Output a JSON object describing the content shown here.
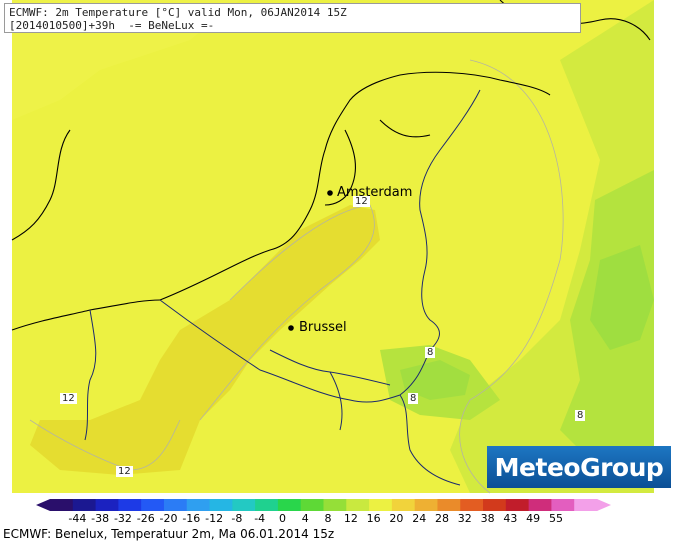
{
  "header": {
    "line1": "ECMWF: 2m Temperature [°C] valid Mon, 06JAN2014 15Z",
    "line2": "[2014010500]+39h  -= BeNeLux =-"
  },
  "cities": [
    {
      "name": "Amsterdam"
    },
    {
      "name": "Brussel"
    }
  ],
  "contour_labels": [
    "12",
    "12",
    "12",
    "8",
    "8",
    "8"
  ],
  "brand": {
    "name": "MeteoGroup"
  },
  "legend": {
    "ticks": [
      "-44",
      "-38",
      "-32",
      "-26",
      "-20",
      "-16",
      "-12",
      "-8",
      "-4",
      "0",
      "4",
      "8",
      "12",
      "16",
      "20",
      "24",
      "28",
      "32",
      "38",
      "43",
      "49",
      "55"
    ],
    "colors": [
      "#2a0f6b",
      "#1b1891",
      "#1b22c0",
      "#1d3ae6",
      "#2359f5",
      "#2b7cf5",
      "#2f9ff0",
      "#25b6e4",
      "#23c9c3",
      "#1fd18f",
      "#29d64b",
      "#5ed936",
      "#95df38",
      "#c9e93f",
      "#ecf142",
      "#f1d33b",
      "#eeb033",
      "#ea8b2a",
      "#e35d22",
      "#d23a1c",
      "#c11d2b",
      "#cf2d7b",
      "#e35ebf",
      "#f3a0e9"
    ]
  },
  "footer": {
    "text": "ECMWF: Benelux, Temperatuur 2m, Ma 06.01.2014 15z"
  },
  "colors": {
    "field_yellow": "#ecf142",
    "field_dark_yellow": "#e5dd30",
    "field_green_yellow": "#c9e93f",
    "field_green": "#a5e33e",
    "field_deep_green": "#90db40"
  }
}
